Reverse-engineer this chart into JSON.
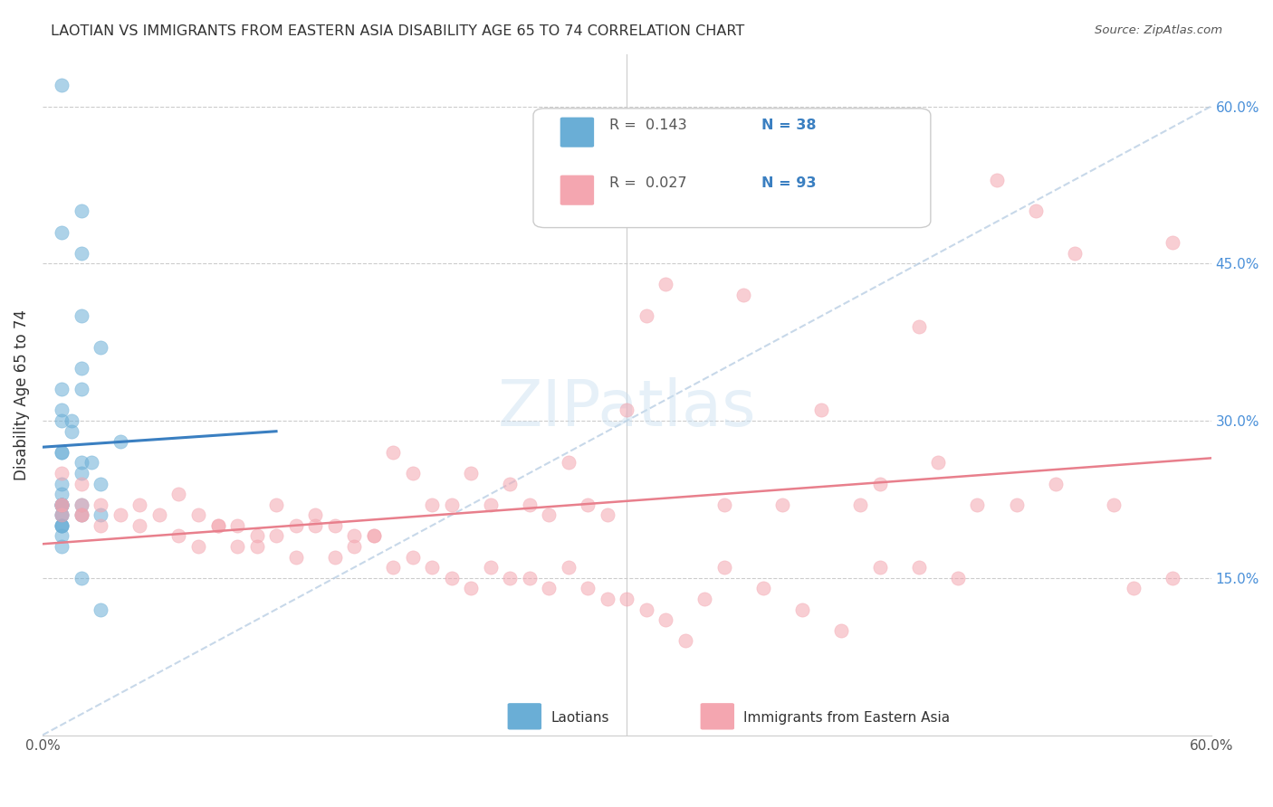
{
  "title": "LAOTIAN VS IMMIGRANTS FROM EASTERN ASIA DISABILITY AGE 65 TO 74 CORRELATION CHART",
  "source": "Source: ZipAtlas.com",
  "xlabel_bottom": "",
  "ylabel": "Disability Age 65 to 74",
  "xmin": 0.0,
  "xmax": 0.6,
  "ymin": 0.0,
  "ymax": 0.65,
  "x_ticks": [
    0.0,
    0.1,
    0.2,
    0.3,
    0.4,
    0.5,
    0.6
  ],
  "x_tick_labels": [
    "0.0%",
    "",
    "",
    "",
    "",
    "",
    "60.0%"
  ],
  "y_tick_labels_right": [
    "60.0%",
    "45.0%",
    "30.0%",
    "15.0%"
  ],
  "y_tick_positions_right": [
    0.6,
    0.45,
    0.3,
    0.15
  ],
  "legend_r1": "R =  0.143",
  "legend_n1": "N = 38",
  "legend_r2": "R =  0.027",
  "legend_n2": "N = 93",
  "blue_color": "#6aaed6",
  "pink_color": "#f4a6b0",
  "line_blue": "#3a7fc1",
  "line_pink": "#e87f8c",
  "line_dashed": "#b0c8e0",
  "watermark": "ZIPatlas",
  "laotians_x": [
    0.01,
    0.02,
    0.01,
    0.02,
    0.02,
    0.03,
    0.02,
    0.02,
    0.01,
    0.01,
    0.015,
    0.015,
    0.01,
    0.01,
    0.01,
    0.02,
    0.025,
    0.02,
    0.03,
    0.04,
    0.01,
    0.01,
    0.01,
    0.01,
    0.01,
    0.01,
    0.02,
    0.01,
    0.03,
    0.01,
    0.01,
    0.01,
    0.02,
    0.02,
    0.03,
    0.01,
    0.01,
    0.01
  ],
  "laotians_y": [
    0.62,
    0.5,
    0.48,
    0.46,
    0.4,
    0.37,
    0.35,
    0.33,
    0.33,
    0.31,
    0.3,
    0.29,
    0.3,
    0.27,
    0.27,
    0.26,
    0.26,
    0.25,
    0.24,
    0.28,
    0.24,
    0.23,
    0.22,
    0.22,
    0.22,
    0.22,
    0.22,
    0.21,
    0.21,
    0.21,
    0.2,
    0.2,
    0.21,
    0.15,
    0.12,
    0.2,
    0.19,
    0.18
  ],
  "eastern_asia_x": [
    0.01,
    0.01,
    0.02,
    0.02,
    0.01,
    0.03,
    0.05,
    0.07,
    0.08,
    0.09,
    0.1,
    0.11,
    0.12,
    0.13,
    0.14,
    0.15,
    0.16,
    0.17,
    0.18,
    0.19,
    0.2,
    0.21,
    0.22,
    0.23,
    0.24,
    0.25,
    0.26,
    0.27,
    0.28,
    0.29,
    0.3,
    0.31,
    0.32,
    0.35,
    0.36,
    0.38,
    0.4,
    0.42,
    0.43,
    0.45,
    0.46,
    0.48,
    0.5,
    0.52,
    0.55,
    0.58,
    0.02,
    0.03,
    0.04,
    0.05,
    0.06,
    0.07,
    0.08,
    0.09,
    0.1,
    0.11,
    0.12,
    0.13,
    0.14,
    0.15,
    0.16,
    0.17,
    0.18,
    0.19,
    0.2,
    0.21,
    0.22,
    0.23,
    0.24,
    0.25,
    0.26,
    0.27,
    0.28,
    0.29,
    0.3,
    0.31,
    0.32,
    0.33,
    0.34,
    0.35,
    0.37,
    0.39,
    0.41,
    0.43,
    0.45,
    0.47,
    0.49,
    0.51,
    0.53,
    0.56,
    0.58,
    0.01,
    0.02
  ],
  "eastern_asia_y": [
    0.25,
    0.22,
    0.24,
    0.21,
    0.21,
    0.22,
    0.22,
    0.23,
    0.21,
    0.2,
    0.2,
    0.19,
    0.22,
    0.2,
    0.21,
    0.2,
    0.19,
    0.19,
    0.27,
    0.25,
    0.22,
    0.22,
    0.25,
    0.22,
    0.24,
    0.22,
    0.21,
    0.26,
    0.22,
    0.21,
    0.31,
    0.4,
    0.43,
    0.22,
    0.42,
    0.22,
    0.31,
    0.22,
    0.24,
    0.39,
    0.26,
    0.22,
    0.22,
    0.24,
    0.22,
    0.47,
    0.21,
    0.2,
    0.21,
    0.2,
    0.21,
    0.19,
    0.18,
    0.2,
    0.18,
    0.18,
    0.19,
    0.17,
    0.2,
    0.17,
    0.18,
    0.19,
    0.16,
    0.17,
    0.16,
    0.15,
    0.14,
    0.16,
    0.15,
    0.15,
    0.14,
    0.16,
    0.14,
    0.13,
    0.13,
    0.12,
    0.11,
    0.09,
    0.13,
    0.16,
    0.14,
    0.12,
    0.1,
    0.16,
    0.16,
    0.15,
    0.53,
    0.5,
    0.46,
    0.14,
    0.15,
    0.22,
    0.22
  ]
}
